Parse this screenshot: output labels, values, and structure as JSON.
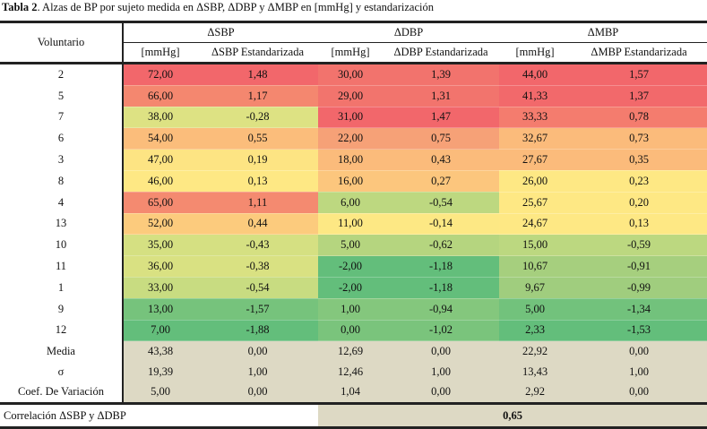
{
  "title": {
    "bold": "Tabla 2",
    "rest": ". Alzas de BP por sujeto medida en ΔSBP, ΔDBP y ΔMBP en [mmHg] y estandarización"
  },
  "headers": {
    "voluntario": "Voluntario",
    "groups": [
      "ΔSBP",
      "ΔDBP",
      "ΔMBP"
    ],
    "sub": [
      "[mmHg]",
      "ΔSBP Estandarizada",
      "[mmHg]",
      "ΔDBP Estandarizada",
      "[mmHg]",
      "ΔMBP Estandarizada"
    ]
  },
  "rows": [
    {
      "id": "2",
      "sbp": "72,00",
      "sbp_z": "1,48",
      "dbp": "30,00",
      "dbp_z": "1,39",
      "mbp": "44,00",
      "mbp_z": "1,57",
      "c_sbp": "#f2676b",
      "c_dbp": "#f2736d",
      "c_mbp": "#f2676b"
    },
    {
      "id": "5",
      "sbp": "66,00",
      "sbp_z": "1,17",
      "dbp": "29,00",
      "dbp_z": "1,31",
      "mbp": "41,33",
      "mbp_z": "1,37",
      "c_sbp": "#f4876f",
      "c_dbp": "#f2746d",
      "c_mbp": "#f2696b"
    },
    {
      "id": "7",
      "sbp": "38,00",
      "sbp_z": "-0,28",
      "dbp": "31,00",
      "dbp_z": "1,47",
      "mbp": "33,33",
      "mbp_z": "0,78",
      "c_sbp": "#dde283",
      "c_dbp": "#f2676b",
      "c_mbp": "#f47c6e"
    },
    {
      "id": "6",
      "sbp": "54,00",
      "sbp_z": "0,55",
      "dbp": "22,00",
      "dbp_z": "0,75",
      "mbp": "32,67",
      "mbp_z": "0,73",
      "c_sbp": "#fbbd7b",
      "c_dbp": "#f6a177",
      "c_mbp": "#fbbb7b"
    },
    {
      "id": "3",
      "sbp": "47,00",
      "sbp_z": "0,19",
      "dbp": "18,00",
      "dbp_z": "0,43",
      "mbp": "27,67",
      "mbp_z": "0,35",
      "c_sbp": "#fde483",
      "c_dbp": "#fbbb7b",
      "c_mbp": "#fbbb7b"
    },
    {
      "id": "8",
      "sbp": "46,00",
      "sbp_z": "0,13",
      "dbp": "16,00",
      "dbp_z": "0,27",
      "mbp": "26,00",
      "mbp_z": "0,23",
      "c_sbp": "#fee884",
      "c_dbp": "#fcc67d",
      "c_mbp": "#fee884"
    },
    {
      "id": "4",
      "sbp": "65,00",
      "sbp_z": "1,11",
      "dbp": "6,00",
      "dbp_z": "-0,54",
      "mbp": "25,67",
      "mbp_z": "0,20",
      "c_sbp": "#f48a70",
      "c_dbp": "#bdd880",
      "c_mbp": "#fee884"
    },
    {
      "id": "13",
      "sbp": "52,00",
      "sbp_z": "0,44",
      "dbp": "11,00",
      "dbp_z": "-0,14",
      "mbp": "24,67",
      "mbp_z": "0,13",
      "c_sbp": "#fccb7d",
      "c_dbp": "#fde884",
      "c_mbp": "#fee884"
    },
    {
      "id": "10",
      "sbp": "35,00",
      "sbp_z": "-0,43",
      "dbp": "5,00",
      "dbp_z": "-0,62",
      "mbp": "15,00",
      "mbp_z": "-0,59",
      "c_sbp": "#d5e082",
      "c_dbp": "#b5d57f",
      "c_mbp": "#bcd880"
    },
    {
      "id": "11",
      "sbp": "36,00",
      "sbp_z": "-0,38",
      "dbp": "-2,00",
      "dbp_z": "-1,18",
      "mbp": "10,67",
      "mbp_z": "-0,91",
      "c_sbp": "#d9e182",
      "c_dbp": "#63be7b",
      "c_mbp": "#a6cf7e"
    },
    {
      "id": "1",
      "sbp": "33,00",
      "sbp_z": "-0,54",
      "dbp": "-2,00",
      "dbp_z": "-1,18",
      "mbp": "9,67",
      "mbp_z": "-0,99",
      "c_sbp": "#c8dc81",
      "c_dbp": "#63be7b",
      "c_mbp": "#a0cd7e"
    },
    {
      "id": "9",
      "sbp": "13,00",
      "sbp_z": "-1,57",
      "dbp": "1,00",
      "dbp_z": "-0,94",
      "mbp": "5,00",
      "mbp_z": "-1,34",
      "c_sbp": "#76c37c",
      "c_dbp": "#84c77d",
      "c_mbp": "#72c27c"
    },
    {
      "id": "12",
      "sbp": "7,00",
      "sbp_z": "-1,88",
      "dbp": "0,00",
      "dbp_z": "-1,02",
      "mbp": "2,33",
      "mbp_z": "-1,53",
      "c_sbp": "#63be7b",
      "c_dbp": "#7ac47c",
      "c_mbp": "#63be7b"
    }
  ],
  "stats": [
    {
      "label": "Media",
      "vals": [
        "43,38",
        "0,00",
        "12,69",
        "0,00",
        "22,92",
        "0,00"
      ]
    },
    {
      "label": "σ",
      "vals": [
        "19,39",
        "1,00",
        "12,46",
        "1,00",
        "13,43",
        "1,00"
      ]
    },
    {
      "label": "Coef. De Variación",
      "vals": [
        "5,00",
        "0,00",
        "1,04",
        "0,00",
        "2,92",
        "0,00"
      ]
    }
  ],
  "correlation": {
    "label": "Correlación ΔSBP y ΔDBP",
    "value": "0,65"
  }
}
